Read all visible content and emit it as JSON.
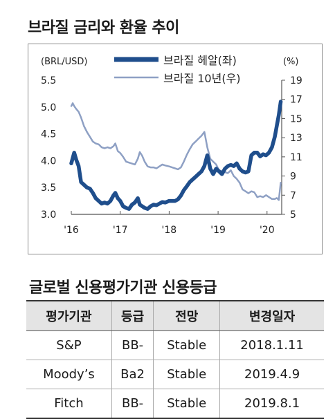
{
  "chart_title": "브라질 금리와 환율 추이",
  "chart_data": {
    "type": "line",
    "left_unit": "(BRL/USD)",
    "right_unit": "(%)",
    "left_ticks": [
      "5.5",
      "5.0",
      "4.5",
      "4.0",
      "3.5",
      "3.0"
    ],
    "right_ticks": [
      "19",
      "17",
      "15",
      "13",
      "11",
      "9",
      "7",
      "5"
    ],
    "x_ticks": [
      "'16",
      "'17",
      "'18",
      "'19",
      "'20"
    ],
    "ylim_left": [
      3.0,
      5.5
    ],
    "ylim_right": [
      5,
      19
    ],
    "xlim": [
      2016.0,
      2020.3
    ],
    "grid": false,
    "legend_position": "top",
    "series": [
      {
        "name": "브라질 헤알(좌)",
        "axis": "left",
        "color": "#1f4e8c",
        "x": [
          2016.0,
          2016.03,
          2016.06,
          2016.1,
          2016.15,
          2016.2,
          2016.26,
          2016.32,
          2016.38,
          2016.44,
          2016.5,
          2016.56,
          2016.62,
          2016.68,
          2016.74,
          2016.8,
          2016.86,
          2016.9,
          2016.95,
          2017.0,
          2017.06,
          2017.12,
          2017.18,
          2017.24,
          2017.3,
          2017.36,
          2017.4,
          2017.45,
          2017.5,
          2017.56,
          2017.62,
          2017.68,
          2017.74,
          2017.8,
          2017.86,
          2017.92,
          2018.0,
          2018.06,
          2018.12,
          2018.18,
          2018.24,
          2018.3,
          2018.36,
          2018.42,
          2018.48,
          2018.54,
          2018.6,
          2018.66,
          2018.72,
          2018.78,
          2018.84,
          2018.9,
          2018.96,
          2019.02,
          2019.08,
          2019.14,
          2019.2,
          2019.26,
          2019.32,
          2019.38,
          2019.44,
          2019.5,
          2019.56,
          2019.62,
          2019.68,
          2019.74,
          2019.8,
          2019.86,
          2019.92,
          2019.98,
          2020.04,
          2020.1,
          2020.16,
          2020.2,
          2020.24,
          2020.28
        ],
        "values": [
          3.95,
          4.05,
          4.15,
          4.02,
          3.9,
          3.6,
          3.55,
          3.5,
          3.48,
          3.4,
          3.3,
          3.25,
          3.2,
          3.22,
          3.2,
          3.25,
          3.35,
          3.4,
          3.3,
          3.25,
          3.15,
          3.12,
          3.1,
          3.18,
          3.22,
          3.3,
          3.18,
          3.15,
          3.12,
          3.1,
          3.15,
          3.18,
          3.17,
          3.2,
          3.23,
          3.22,
          3.25,
          3.25,
          3.25,
          3.28,
          3.35,
          3.45,
          3.52,
          3.6,
          3.65,
          3.7,
          3.75,
          3.8,
          3.9,
          4.1,
          3.85,
          3.75,
          3.85,
          3.8,
          3.75,
          3.85,
          3.9,
          3.92,
          3.9,
          3.95,
          3.85,
          3.8,
          3.78,
          3.8,
          4.1,
          4.15,
          4.15,
          4.08,
          4.12,
          4.1,
          4.15,
          4.25,
          4.45,
          4.65,
          4.85,
          5.1
        ]
      },
      {
        "name": "브라질 10년(우)",
        "axis": "right",
        "color": "#8ea0c4",
        "x": [
          2016.0,
          2016.03,
          2016.06,
          2016.1,
          2016.15,
          2016.2,
          2016.26,
          2016.32,
          2016.38,
          2016.44,
          2016.5,
          2016.56,
          2016.62,
          2016.68,
          2016.74,
          2016.8,
          2016.86,
          2016.9,
          2016.95,
          2017.0,
          2017.06,
          2017.12,
          2017.18,
          2017.24,
          2017.3,
          2017.36,
          2017.4,
          2017.45,
          2017.5,
          2017.56,
          2017.62,
          2017.68,
          2017.74,
          2017.8,
          2017.86,
          2017.92,
          2018.0,
          2018.06,
          2018.12,
          2018.18,
          2018.24,
          2018.3,
          2018.36,
          2018.42,
          2018.48,
          2018.54,
          2018.6,
          2018.66,
          2018.72,
          2018.78,
          2018.84,
          2018.9,
          2018.96,
          2019.02,
          2019.08,
          2019.14,
          2019.2,
          2019.26,
          2019.32,
          2019.38,
          2019.44,
          2019.5,
          2019.56,
          2019.62,
          2019.68,
          2019.74,
          2019.8,
          2019.86,
          2019.92,
          2019.98,
          2020.04,
          2020.1,
          2020.16,
          2020.2,
          2020.24,
          2020.28
        ],
        "values": [
          16.3,
          16.6,
          16.3,
          16.0,
          15.7,
          15.1,
          14.2,
          13.6,
          13.1,
          12.6,
          12.4,
          12.3,
          12.0,
          11.9,
          12.0,
          11.9,
          12.1,
          12.4,
          11.6,
          11.4,
          11.0,
          10.5,
          10.4,
          10.3,
          10.2,
          10.8,
          11.5,
          11.1,
          10.5,
          10.0,
          9.9,
          9.9,
          9.8,
          10.0,
          10.2,
          10.1,
          10.0,
          9.9,
          9.8,
          9.7,
          9.9,
          10.5,
          11.2,
          11.8,
          12.3,
          12.6,
          12.9,
          13.2,
          13.6,
          12.0,
          10.8,
          10.5,
          10.2,
          9.6,
          9.5,
          9.4,
          9.3,
          9.6,
          9.0,
          8.7,
          8.3,
          7.6,
          7.4,
          7.2,
          7.4,
          7.3,
          6.8,
          6.9,
          6.8,
          7.0,
          6.8,
          6.6,
          6.6,
          6.7,
          6.5,
          8.3
        ]
      }
    ]
  },
  "table_title": "글로벌 신용평가기관 신용등급",
  "table": {
    "headers": [
      "평가기관",
      "등급",
      "전망",
      "변경일자"
    ],
    "rows": [
      [
        "S&P",
        "BB-",
        "Stable",
        "2018.1.11"
      ],
      [
        "Moody’s",
        "Ba2",
        "Stable",
        "2019.4.9"
      ],
      [
        "Fitch",
        "BB-",
        "Stable",
        "2019.8.1"
      ]
    ]
  }
}
